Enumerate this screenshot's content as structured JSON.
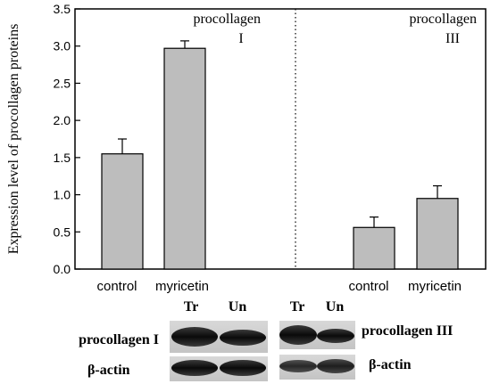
{
  "chart_data": {
    "type": "bar",
    "ylabel": "Expression level of procollagen proteins",
    "ylim": [
      0,
      3.5
    ],
    "yticks": [
      "0.0",
      "0.5",
      "1.0",
      "1.5",
      "2.0",
      "2.5",
      "3.0",
      "3.5"
    ],
    "grid": false,
    "bar_color": "#bdbdbd",
    "panels": [
      {
        "label_line1": "procollagen",
        "label_line2": "I",
        "categories": [
          "control",
          "myricetin"
        ],
        "values": [
          1.55,
          2.97
        ],
        "errors": [
          0.2,
          0.1
        ]
      },
      {
        "label_line1": "procollagen",
        "label_line2": "III",
        "categories": [
          "control",
          "myricetin"
        ],
        "values": [
          0.56,
          0.95
        ],
        "errors": [
          0.14,
          0.17
        ]
      }
    ]
  },
  "blot": {
    "lane_headers": [
      "Tr",
      "Un",
      "Tr",
      "Un"
    ],
    "row1_left_label": "procollagen I",
    "row1_right_label": "procollagen III",
    "row2_left_label": "β-actin",
    "row2_right_label": "β-actin"
  }
}
